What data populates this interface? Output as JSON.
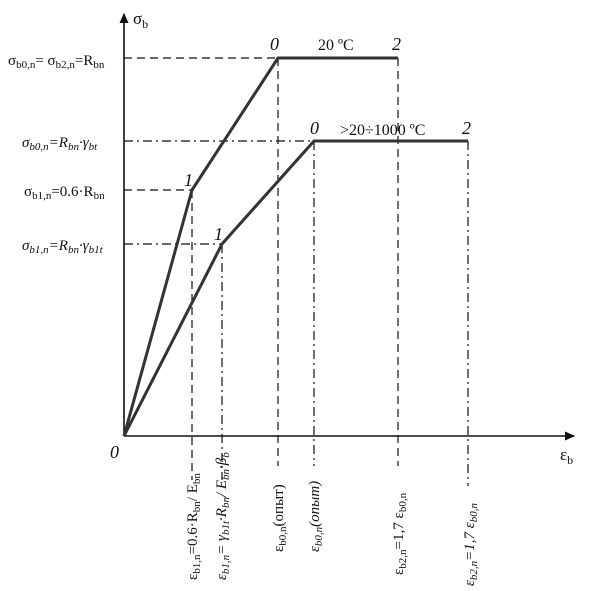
{
  "axes": {
    "y_label": "σb",
    "x_label": "εb",
    "origin_label": "0"
  },
  "curves": [
    {
      "name": "20 ºC",
      "point_labels": [
        "0",
        "1",
        "0",
        "2"
      ]
    },
    {
      "name": ">20÷1000 ºC",
      "point_labels": [
        "0",
        "1",
        "0",
        "2"
      ]
    }
  ],
  "y_labels": {
    "sb0n_eq": "σb0,n= σb2,n=Rbn",
    "sb0n_t": "σb0,n=Rbn·γbt",
    "sb1n_eq": "σb1,n=0.6·Rbn",
    "sb1n_t": "σb1,n=Rbn·γb1t"
  },
  "x_labels": {
    "eb1n": "εb1,n=0.6·Rbn/ Ebn",
    "eb1n_t": "εb1,n= γb1t·Rbn/ Ebn·βb",
    "eb0n_exp": "εb0,n(опыт)",
    "eb0n_exp_t": "εb0,n(опыт)",
    "eb2n": "εb2,n=1,7 εb0,n",
    "eb2n_t": "εb2,n=1,7 εb0,n"
  }
}
